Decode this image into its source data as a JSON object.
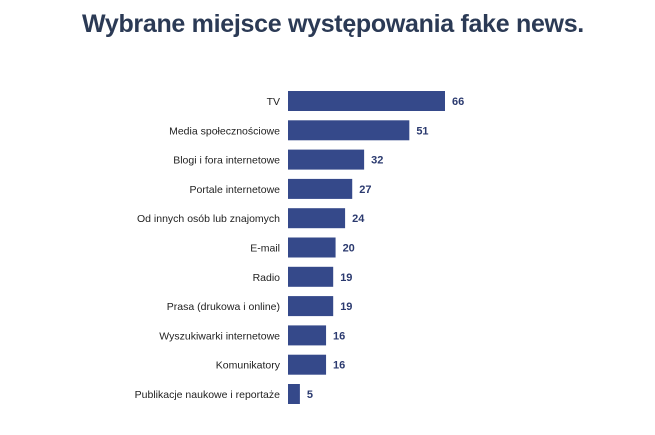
{
  "chart_data": {
    "type": "bar",
    "orientation": "horizontal",
    "title": "Wybrane miejsce występowania fake news.",
    "categories": [
      "TV",
      "Media społecznościowe",
      "Blogi i fora internetowe",
      "Portale internetowe",
      "Od innych osób lub znajomych",
      "E-mail",
      "Radio",
      "Prasa (drukowa i online)",
      "Wyszukiwarki internetowe",
      "Komunikatory",
      "Publikacje naukowe i reportaże"
    ],
    "values": [
      66,
      51,
      32,
      27,
      24,
      20,
      19,
      19,
      16,
      16,
      5
    ],
    "xlim": [
      0,
      66
    ],
    "bar_color": "#35498a",
    "value_label_color": "#2b3a6f",
    "grid": false,
    "legend": "none"
  }
}
